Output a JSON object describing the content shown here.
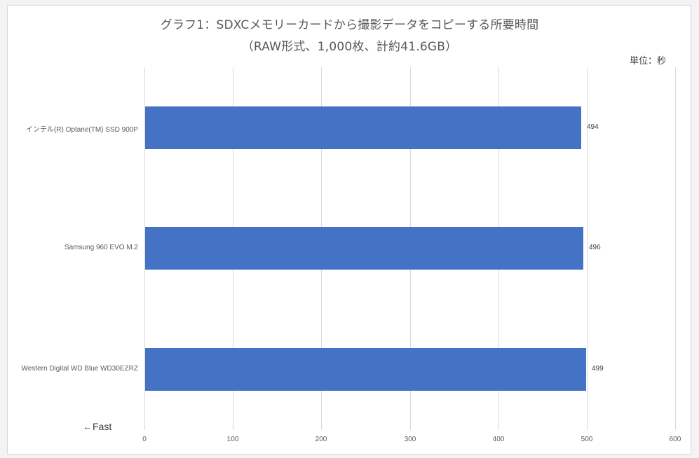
{
  "chart_data": {
    "type": "bar",
    "orientation": "horizontal",
    "title": "グラフ1：SDXCメモリーカードから撮影データをコピーする所要時間",
    "subtitle": "（RAW形式、1,000枚、計約41.6GB）",
    "unit_label": "単位：秒",
    "categories": [
      "インテル(R) Optane(TM) SSD 900P",
      "Samsung 960 EVO M.2",
      "Western Digital WD Blue WD30EZRZ"
    ],
    "values": [
      494,
      496,
      499
    ],
    "value_labels": [
      "494",
      "496",
      "499"
    ],
    "xlabel": "",
    "ylabel": "",
    "xlim": [
      0,
      600
    ],
    "x_ticks": [
      "0",
      "100",
      "200",
      "300",
      "400",
      "500",
      "600"
    ],
    "grid": true,
    "legend": null,
    "annotation": "←Fast",
    "bar_color": "#4472c4"
  }
}
